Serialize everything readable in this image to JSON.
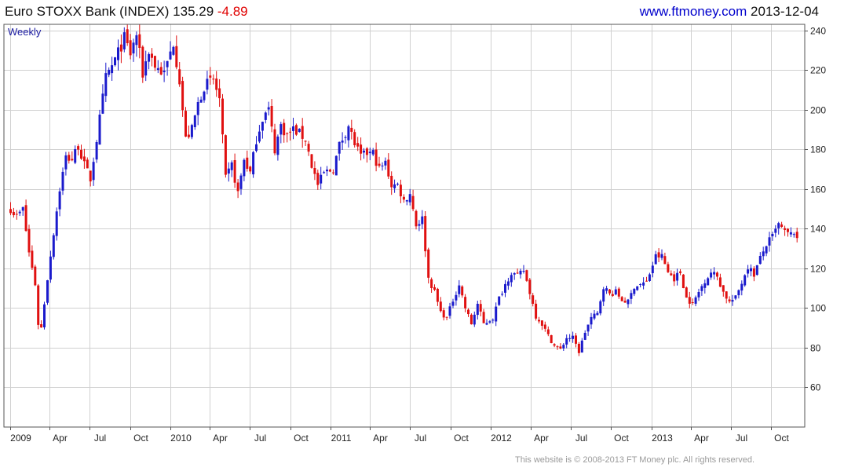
{
  "header": {
    "index_name": "Euro STOXX Bank (INDEX)",
    "last": "135.29",
    "change": "-4.89",
    "site": "www.ftmoney.com",
    "date": "2013-12-04"
  },
  "footer": "This website is © 2008-2013 FT Money plc. All rights reserved.",
  "chart_data": {
    "type": "candlestick",
    "periodicity": "Weekly",
    "ylim": [
      40,
      243
    ],
    "y_ticks": [
      60,
      80,
      100,
      120,
      140,
      160,
      180,
      200,
      220,
      240
    ],
    "x_tick_labels": [
      "2009",
      "Apr",
      "Jul",
      "Oct",
      "2010",
      "Apr",
      "Jul",
      "Oct",
      "2011",
      "Apr",
      "Jul",
      "Oct",
      "2012",
      "Apr",
      "Jul",
      "Oct",
      "2013",
      "Apr",
      "Jul",
      "Oct"
    ],
    "grid": true,
    "colors": {
      "up": "#1a1acc",
      "down": "#e01010",
      "grid": "#d0d0d0"
    },
    "close_path": [
      [
        "2009-01-02",
        150
      ],
      [
        "2009-01-16",
        146
      ],
      [
        "2009-01-30",
        150
      ],
      [
        "2009-02-13",
        128
      ],
      [
        "2009-02-27",
        112
      ],
      [
        "2009-03-06",
        92
      ],
      [
        "2009-03-13",
        90
      ],
      [
        "2009-03-27",
        115
      ],
      [
        "2009-04-10",
        138
      ],
      [
        "2009-04-24",
        160
      ],
      [
        "2009-05-08",
        176
      ],
      [
        "2009-05-22",
        175
      ],
      [
        "2009-06-05",
        182
      ],
      [
        "2009-06-19",
        172
      ],
      [
        "2009-07-03",
        165
      ],
      [
        "2009-07-17",
        185
      ],
      [
        "2009-08-07",
        216
      ],
      [
        "2009-08-28",
        225
      ],
      [
        "2009-09-18",
        236
      ],
      [
        "2009-10-02",
        228
      ],
      [
        "2009-10-16",
        238
      ],
      [
        "2009-10-30",
        218
      ],
      [
        "2009-11-13",
        230
      ],
      [
        "2009-11-27",
        222
      ],
      [
        "2009-12-18",
        218
      ],
      [
        "2010-01-08",
        234
      ],
      [
        "2010-01-22",
        215
      ],
      [
        "2010-02-05",
        185
      ],
      [
        "2010-02-19",
        190
      ],
      [
        "2010-03-05",
        203
      ],
      [
        "2010-03-19",
        212
      ],
      [
        "2010-04-09",
        215
      ],
      [
        "2010-04-23",
        205
      ],
      [
        "2010-05-07",
        165
      ],
      [
        "2010-05-21",
        172
      ],
      [
        "2010-06-04",
        158
      ],
      [
        "2010-06-18",
        175
      ],
      [
        "2010-07-02",
        168
      ],
      [
        "2010-07-16",
        185
      ],
      [
        "2010-07-30",
        196
      ],
      [
        "2010-08-13",
        200
      ],
      [
        "2010-08-27",
        180
      ],
      [
        "2010-09-10",
        192
      ],
      [
        "2010-09-24",
        187
      ],
      [
        "2010-10-08",
        190
      ],
      [
        "2010-10-22",
        188
      ],
      [
        "2010-11-05",
        185
      ],
      [
        "2010-11-19",
        172
      ],
      [
        "2010-12-03",
        162
      ],
      [
        "2010-12-17",
        168
      ],
      [
        "2011-01-07",
        170
      ],
      [
        "2011-01-21",
        182
      ],
      [
        "2011-02-11",
        192
      ],
      [
        "2011-02-25",
        183
      ],
      [
        "2011-03-11",
        176
      ],
      [
        "2011-03-25",
        178
      ],
      [
        "2011-04-08",
        178
      ],
      [
        "2011-04-22",
        170
      ],
      [
        "2011-05-06",
        173
      ],
      [
        "2011-05-20",
        162
      ],
      [
        "2011-06-03",
        162
      ],
      [
        "2011-06-17",
        154
      ],
      [
        "2011-07-01",
        158
      ],
      [
        "2011-07-15",
        142
      ],
      [
        "2011-07-29",
        145
      ],
      [
        "2011-08-12",
        115
      ],
      [
        "2011-08-26",
        108
      ],
      [
        "2011-09-09",
        98
      ],
      [
        "2011-09-23",
        95
      ],
      [
        "2011-10-07",
        104
      ],
      [
        "2011-10-21",
        112
      ],
      [
        "2011-11-04",
        100
      ],
      [
        "2011-11-18",
        92
      ],
      [
        "2011-12-02",
        102
      ],
      [
        "2011-12-16",
        92
      ],
      [
        "2012-01-06",
        95
      ],
      [
        "2012-01-20",
        105
      ],
      [
        "2012-02-03",
        112
      ],
      [
        "2012-02-17",
        118
      ],
      [
        "2012-03-02",
        116
      ],
      [
        "2012-03-16",
        119
      ],
      [
        "2012-03-30",
        108
      ],
      [
        "2012-04-13",
        96
      ],
      [
        "2012-04-27",
        92
      ],
      [
        "2012-05-11",
        86
      ],
      [
        "2012-05-25",
        81
      ],
      [
        "2012-06-08",
        79
      ],
      [
        "2012-06-22",
        85
      ],
      [
        "2012-07-06",
        85
      ],
      [
        "2012-07-20",
        78
      ],
      [
        "2012-08-03",
        88
      ],
      [
        "2012-08-17",
        95
      ],
      [
        "2012-08-31",
        97
      ],
      [
        "2012-09-14",
        111
      ],
      [
        "2012-09-28",
        107
      ],
      [
        "2012-10-12",
        108
      ],
      [
        "2012-10-26",
        104
      ],
      [
        "2012-11-09",
        103
      ],
      [
        "2012-11-23",
        111
      ],
      [
        "2012-12-07",
        112
      ],
      [
        "2012-12-21",
        113
      ],
      [
        "2013-01-11",
        126
      ],
      [
        "2013-01-25",
        126
      ],
      [
        "2013-02-08",
        118
      ],
      [
        "2013-02-22",
        115
      ],
      [
        "2013-03-08",
        118
      ],
      [
        "2013-03-22",
        105
      ],
      [
        "2013-04-05",
        102
      ],
      [
        "2013-04-19",
        108
      ],
      [
        "2013-05-03",
        114
      ],
      [
        "2013-05-17",
        118
      ],
      [
        "2013-05-31",
        116
      ],
      [
        "2013-06-14",
        108
      ],
      [
        "2013-06-28",
        103
      ],
      [
        "2013-07-12",
        105
      ],
      [
        "2013-07-26",
        113
      ],
      [
        "2013-08-09",
        121
      ],
      [
        "2013-08-23",
        117
      ],
      [
        "2013-09-06",
        125
      ],
      [
        "2013-09-20",
        132
      ],
      [
        "2013-10-04",
        136
      ],
      [
        "2013-10-18",
        142
      ],
      [
        "2013-11-01",
        138
      ],
      [
        "2013-11-15",
        137
      ],
      [
        "2013-11-29",
        140
      ],
      [
        "2013-12-04",
        135.29
      ]
    ]
  }
}
